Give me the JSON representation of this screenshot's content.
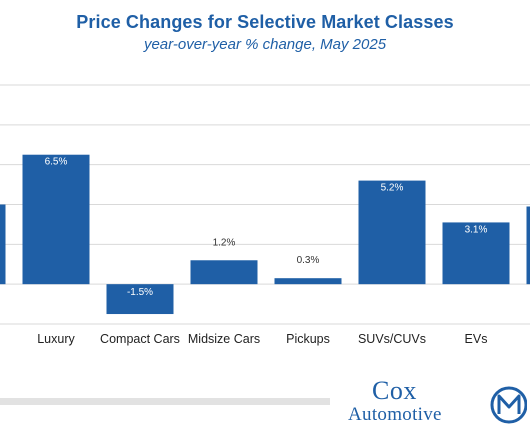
{
  "header": {
    "title": "Price Changes for Selective Market Classes",
    "subtitle": "year-over-year % change, May 2025"
  },
  "chart_data": {
    "type": "bar",
    "title": "Price Changes for Selective Market Classes",
    "subtitle": "year-over-year % change, May 2025",
    "categories": [
      "",
      "Luxury",
      "Compact Cars",
      "Midsize Cars",
      "Pickups",
      "SUVs/CUVs",
      "EVs",
      ""
    ],
    "values": [
      4.0,
      6.5,
      -1.5,
      1.2,
      0.3,
      5.2,
      3.1,
      3.9
    ],
    "data_labels": [
      "",
      "6.5%",
      "-1.5%",
      "1.2%",
      "0.3%",
      "5.2%",
      "3.1%",
      ""
    ],
    "ylim": [
      -2,
      10
    ],
    "gridlines": true,
    "bar_color": "#1f5fa6",
    "grid_color": "#d9d9d9",
    "label_color": "#333333"
  },
  "footer": {
    "brand_line1": "Cox",
    "brand_line2": "Automotive",
    "brand_color": "#1f5fa6",
    "badge_icon": "manheim-m-icon"
  }
}
